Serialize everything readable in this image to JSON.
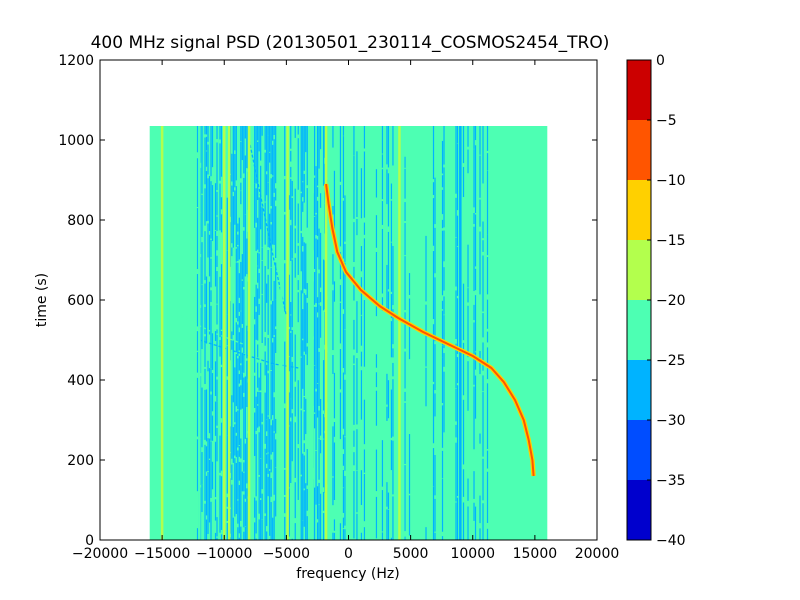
{
  "chart_data": {
    "type": "heatmap",
    "title": "400 MHz signal PSD (20130501_230114_COSMOS2454_TRO)",
    "xlabel": "frequency (Hz)",
    "ylabel": "time (s)",
    "xlim": [
      -20000,
      20000
    ],
    "ylim": [
      0,
      1200
    ],
    "x_ticks": [
      -20000,
      -15000,
      -10000,
      -5000,
      0,
      5000,
      10000,
      15000,
      20000
    ],
    "x_tick_labels": [
      "−20000",
      "−15000",
      "−10000",
      "−5000",
      "0",
      "5000",
      "10000",
      "15000",
      "20000"
    ],
    "y_ticks": [
      0,
      200,
      400,
      600,
      800,
      1000,
      1200
    ],
    "y_tick_labels": [
      "0",
      "200",
      "400",
      "600",
      "800",
      "1000",
      "1200"
    ],
    "data_extent": {
      "x": [
        -16000,
        16000
      ],
      "y": [
        0,
        1035
      ]
    },
    "background_level": -22.5,
    "colorbar": {
      "range": [
        -40,
        0
      ],
      "ticks": [
        -40,
        -35,
        -30,
        -25,
        -20,
        -15,
        -10,
        -5,
        0
      ],
      "tick_labels": [
        "−40",
        "−35",
        "−30",
        "−25",
        "−20",
        "−15",
        "−10",
        "−5",
        "0"
      ],
      "levels": [
        {
          "min": -40,
          "max": -35,
          "color": "#0000cd"
        },
        {
          "min": -35,
          "max": -30,
          "color": "#004dff"
        },
        {
          "min": -30,
          "max": -25,
          "color": "#00b3ff"
        },
        {
          "min": -25,
          "max": -20,
          "color": "#4dffb3"
        },
        {
          "min": -20,
          "max": -15,
          "color": "#b3ff4d"
        },
        {
          "min": -15,
          "max": -10,
          "color": "#ffd000"
        },
        {
          "min": -10,
          "max": -5,
          "color": "#ff5500"
        },
        {
          "min": -5,
          "max": 0,
          "color": "#cc0000"
        }
      ]
    },
    "noise_bands": [
      {
        "x": [
          -12200,
          -10200
        ],
        "level": -27.5
      },
      {
        "x": [
          -9800,
          -8000
        ],
        "level": -27.5
      },
      {
        "x": [
          -7600,
          -5800
        ],
        "level": -27.5
      },
      {
        "x": [
          -5300,
          -3300
        ],
        "level": -27.5
      },
      {
        "x": [
          -2900,
          -1700
        ],
        "level": -27.5
      },
      {
        "x": [
          -1300,
          3800
        ],
        "level": -27.5,
        "density": 0.45
      },
      {
        "x": [
          4500,
          11500
        ],
        "level": -27.5,
        "density": 0.25
      }
    ],
    "carrier_lines": [
      {
        "x": -15000,
        "y": [
          0,
          1035
        ],
        "level": -17.5
      },
      {
        "x": -14500,
        "y": [
          0,
          1035
        ],
        "level": -22.5
      },
      {
        "x": -12000,
        "y": [
          0,
          1035
        ],
        "level": -22.5
      },
      {
        "x": -10000,
        "y": [
          0,
          1035
        ],
        "level": -17.5
      },
      {
        "x": -9600,
        "y": [
          0,
          1035
        ],
        "level": -17.5
      },
      {
        "x": -8000,
        "y": [
          0,
          1035
        ],
        "level": -17.5
      },
      {
        "x": -5400,
        "y": [
          0,
          1035
        ],
        "level": -22.5
      },
      {
        "x": -4900,
        "y": [
          0,
          1035
        ],
        "level": -17.5
      },
      {
        "x": -2900,
        "y": [
          0,
          1035
        ],
        "level": -22.5
      },
      {
        "x": -1800,
        "y": [
          0,
          1035
        ],
        "level": -17.5
      },
      {
        "x": 4100,
        "y": [
          0,
          1035
        ],
        "level": -17.5
      },
      {
        "x": 4400,
        "y": [
          0,
          1035
        ],
        "level": -22.5
      },
      {
        "x": 9000,
        "y": [
          0,
          1035
        ],
        "level": -27.5
      }
    ],
    "doppler_track": {
      "level": -7.5,
      "points": [
        [
          -1800,
          890
        ],
        [
          -1600,
          840
        ],
        [
          -1300,
          780
        ],
        [
          -900,
          720
        ],
        [
          -200,
          670
        ],
        [
          1000,
          625
        ],
        [
          2500,
          585
        ],
        [
          4000,
          555
        ],
        [
          6000,
          520
        ],
        [
          8000,
          490
        ],
        [
          10000,
          460
        ],
        [
          11500,
          430
        ],
        [
          12500,
          395
        ],
        [
          13400,
          350
        ],
        [
          14100,
          300
        ],
        [
          14500,
          250
        ],
        [
          14800,
          200
        ],
        [
          14900,
          160
        ]
      ]
    },
    "faint_tracks": [
      {
        "level": -27.5,
        "points": [
          [
            -12000,
            500
          ],
          [
            -9000,
            470
          ],
          [
            -6000,
            440
          ],
          [
            -4000,
            430
          ]
        ]
      },
      {
        "level": -27.5,
        "points": [
          [
            -8000,
            1000
          ],
          [
            -7000,
            850
          ],
          [
            -6000,
            700
          ],
          [
            -5000,
            560
          ]
        ]
      },
      {
        "level": -22.5,
        "points": [
          [
            -13500,
            560
          ],
          [
            -11000,
            520
          ],
          [
            -8500,
            490
          ]
        ]
      }
    ]
  }
}
